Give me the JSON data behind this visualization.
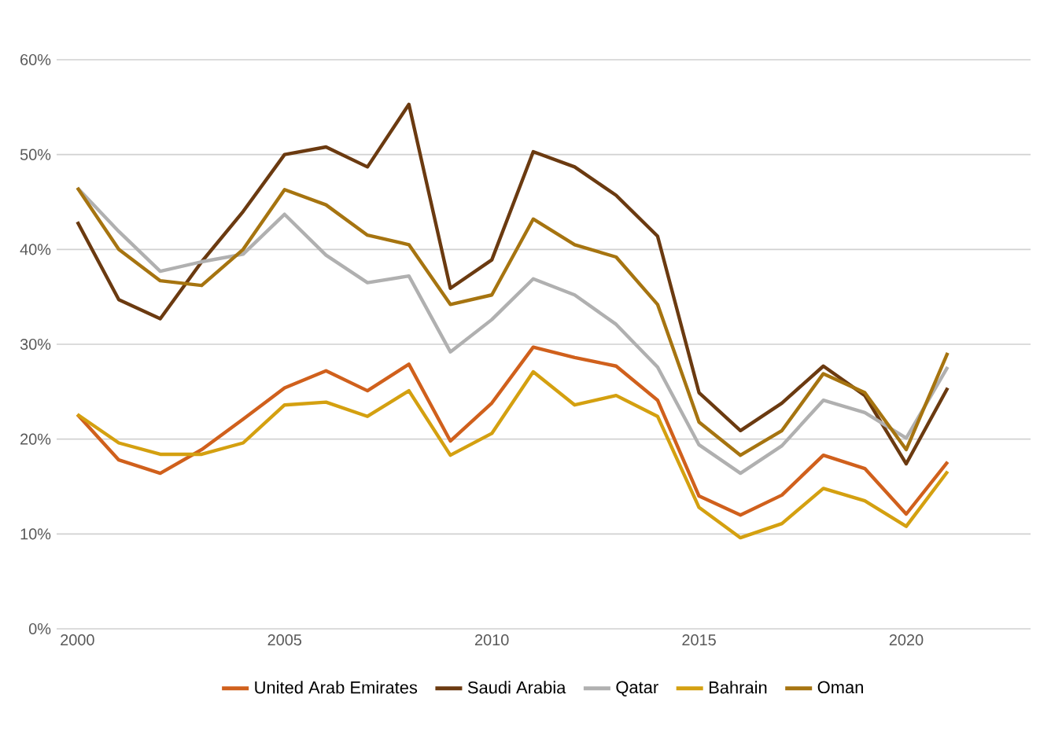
{
  "chart_data": {
    "type": "line",
    "x": [
      2000,
      2001,
      2002,
      2003,
      2004,
      2005,
      2006,
      2007,
      2008,
      2009,
      2010,
      2011,
      2012,
      2013,
      2014,
      2015,
      2016,
      2017,
      2018,
      2019,
      2020,
      2021
    ],
    "series": [
      {
        "name": "United Arab Emirates",
        "color": "#d0601c",
        "values": [
          22.6,
          17.8,
          16.4,
          18.9,
          22.1,
          25.4,
          27.2,
          25.1,
          27.9,
          19.8,
          23.8,
          29.7,
          28.6,
          27.7,
          24.1,
          14.0,
          12.0,
          14.1,
          18.3,
          16.9,
          12.1,
          17.6
        ]
      },
      {
        "name": "Saudi Arabia",
        "color": "#6b3a10",
        "values": [
          42.9,
          34.7,
          32.7,
          38.7,
          44.0,
          50.0,
          50.8,
          48.7,
          55.3,
          35.9,
          38.9,
          50.3,
          48.7,
          45.7,
          41.4,
          24.9,
          20.9,
          23.8,
          27.7,
          24.6,
          17.4,
          25.4
        ]
      },
      {
        "name": "Qatar",
        "color": "#b0b0b0",
        "values": [
          46.5,
          41.9,
          37.7,
          38.7,
          39.5,
          43.7,
          39.4,
          36.5,
          37.2,
          29.2,
          32.6,
          36.9,
          35.2,
          32.1,
          27.6,
          19.4,
          16.4,
          19.3,
          24.1,
          22.8,
          20.1,
          27.6
        ]
      },
      {
        "name": "Bahrain",
        "color": "#d4a010",
        "values": [
          22.6,
          19.6,
          18.4,
          18.4,
          19.6,
          23.6,
          23.9,
          22.4,
          25.1,
          18.3,
          20.6,
          27.1,
          23.6,
          24.6,
          22.4,
          12.8,
          9.6,
          11.1,
          14.8,
          13.5,
          10.8,
          16.6
        ]
      },
      {
        "name": "Oman",
        "color": "#a67410",
        "values": [
          46.5,
          40.0,
          36.7,
          36.2,
          40.0,
          46.3,
          44.7,
          41.5,
          40.5,
          34.2,
          35.2,
          43.2,
          40.5,
          39.2,
          34.2,
          21.8,
          18.3,
          20.9,
          26.9,
          24.9,
          18.9,
          29.1
        ]
      }
    ],
    "xlim": [
      1999.5,
      2023
    ],
    "xticks": [
      2000,
      2005,
      2010,
      2015,
      2020
    ],
    "ylim": [
      0,
      60
    ],
    "yticks": [
      {
        "value": 0,
        "label": "0%"
      },
      {
        "value": 10,
        "label": "10%"
      },
      {
        "value": 20,
        "label": "20%"
      },
      {
        "value": 30,
        "label": "30%"
      },
      {
        "value": 40,
        "label": "40%"
      },
      {
        "value": 50,
        "label": "50%"
      },
      {
        "value": 60,
        "label": "60%"
      }
    ],
    "grid": "y",
    "legend": "bottom",
    "marker": "none",
    "line_style": "solid"
  }
}
